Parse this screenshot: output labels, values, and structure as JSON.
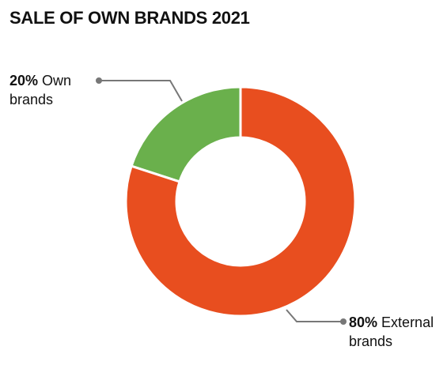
{
  "chart_data": {
    "type": "donut",
    "title": "SALE OF OWN BRANDS 2021",
    "categories": [
      "Own brands",
      "External brands"
    ],
    "values": [
      20,
      80
    ],
    "value_labels": [
      "20%",
      "80%"
    ],
    "colors": [
      "#6ab04c",
      "#e84e1f"
    ]
  }
}
